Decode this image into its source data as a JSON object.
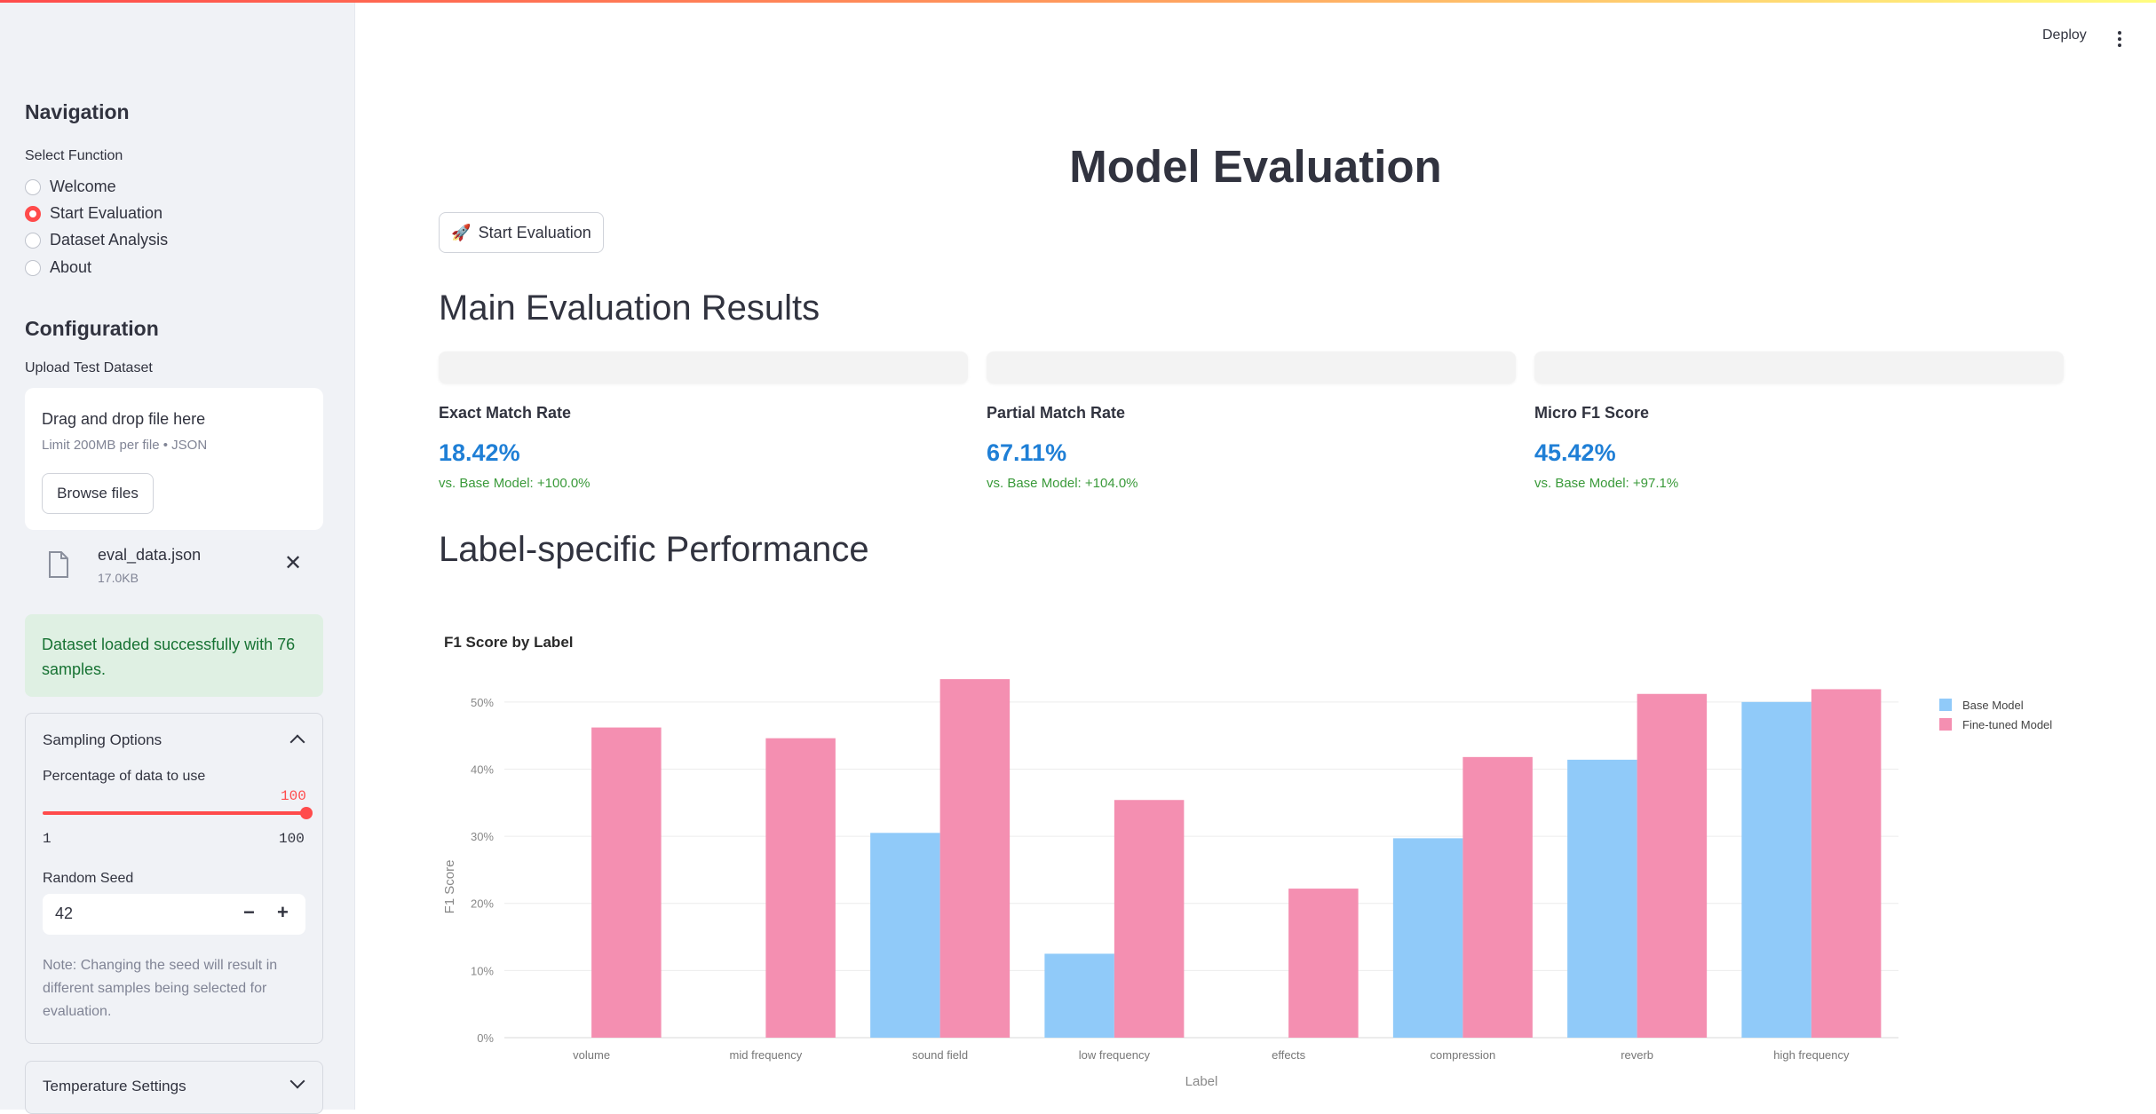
{
  "sidebar": {
    "nav_heading": "Navigation",
    "select_label": "Select Function",
    "options": [
      {
        "label": "Welcome",
        "selected": false
      },
      {
        "label": "Start Evaluation",
        "selected": true
      },
      {
        "label": "Dataset Analysis",
        "selected": false
      },
      {
        "label": "About",
        "selected": false
      }
    ],
    "config_heading": "Configuration",
    "upload_label": "Upload Test Dataset",
    "dropzone_title": "Drag and drop file here",
    "dropzone_limit": "Limit 200MB per file • JSON",
    "browse_label": "Browse files",
    "file_name": "eval_data.json",
    "file_size": "17.0KB",
    "success_message": "Dataset loaded successfully with 76 samples.",
    "sampling_title": "Sampling Options",
    "percentage_label": "Percentage of data to use",
    "slider_value": "100",
    "slider_min": "1",
    "slider_max": "100",
    "seed_label": "Random Seed",
    "seed_value": "42",
    "seed_note": "Note: Changing the seed will result in different samples being selected for evaluation.",
    "temperature_title": "Temperature Settings"
  },
  "header": {
    "deploy_label": "Deploy"
  },
  "main": {
    "title": "Model Evaluation",
    "start_button": "Start Evaluation",
    "results_heading": "Main Evaluation Results",
    "metrics": [
      {
        "label": "Exact Match Rate",
        "value": "18.42%",
        "delta": "vs. Base Model: +100.0%"
      },
      {
        "label": "Partial Match Rate",
        "value": "67.11%",
        "delta": "vs. Base Model: +104.0%"
      },
      {
        "label": "Micro F1 Score",
        "value": "45.42%",
        "delta": "vs. Base Model: +97.1%"
      }
    ],
    "label_heading": "Label-specific Performance"
  },
  "colors": {
    "accent": "#ff4b4b",
    "base_model": "#90caf9",
    "finetuned_model": "#f48fb1",
    "metric_value": "#1f7fd6",
    "delta": "#3a9a3a"
  },
  "chart_data": {
    "type": "bar",
    "title": "F1 Score by Label",
    "xlabel": "Label",
    "ylabel": "F1 Score",
    "categories": [
      "volume",
      "mid frequency",
      "sound field",
      "low frequency",
      "effects",
      "compression",
      "reverb",
      "high frequency"
    ],
    "series": [
      {
        "name": "Base Model",
        "values": [
          0,
          0,
          30.5,
          12.5,
          0,
          29.7,
          41.4,
          50.0
        ]
      },
      {
        "name": "Fine-tuned Model",
        "values": [
          46.2,
          44.6,
          53.4,
          35.4,
          22.2,
          41.8,
          51.2,
          51.9
        ]
      }
    ],
    "ylim": [
      0,
      55
    ],
    "y_ticks": [
      "0%",
      "10%",
      "20%",
      "30%",
      "40%",
      "50%"
    ],
    "grid": true,
    "legend_position": "top-right"
  }
}
